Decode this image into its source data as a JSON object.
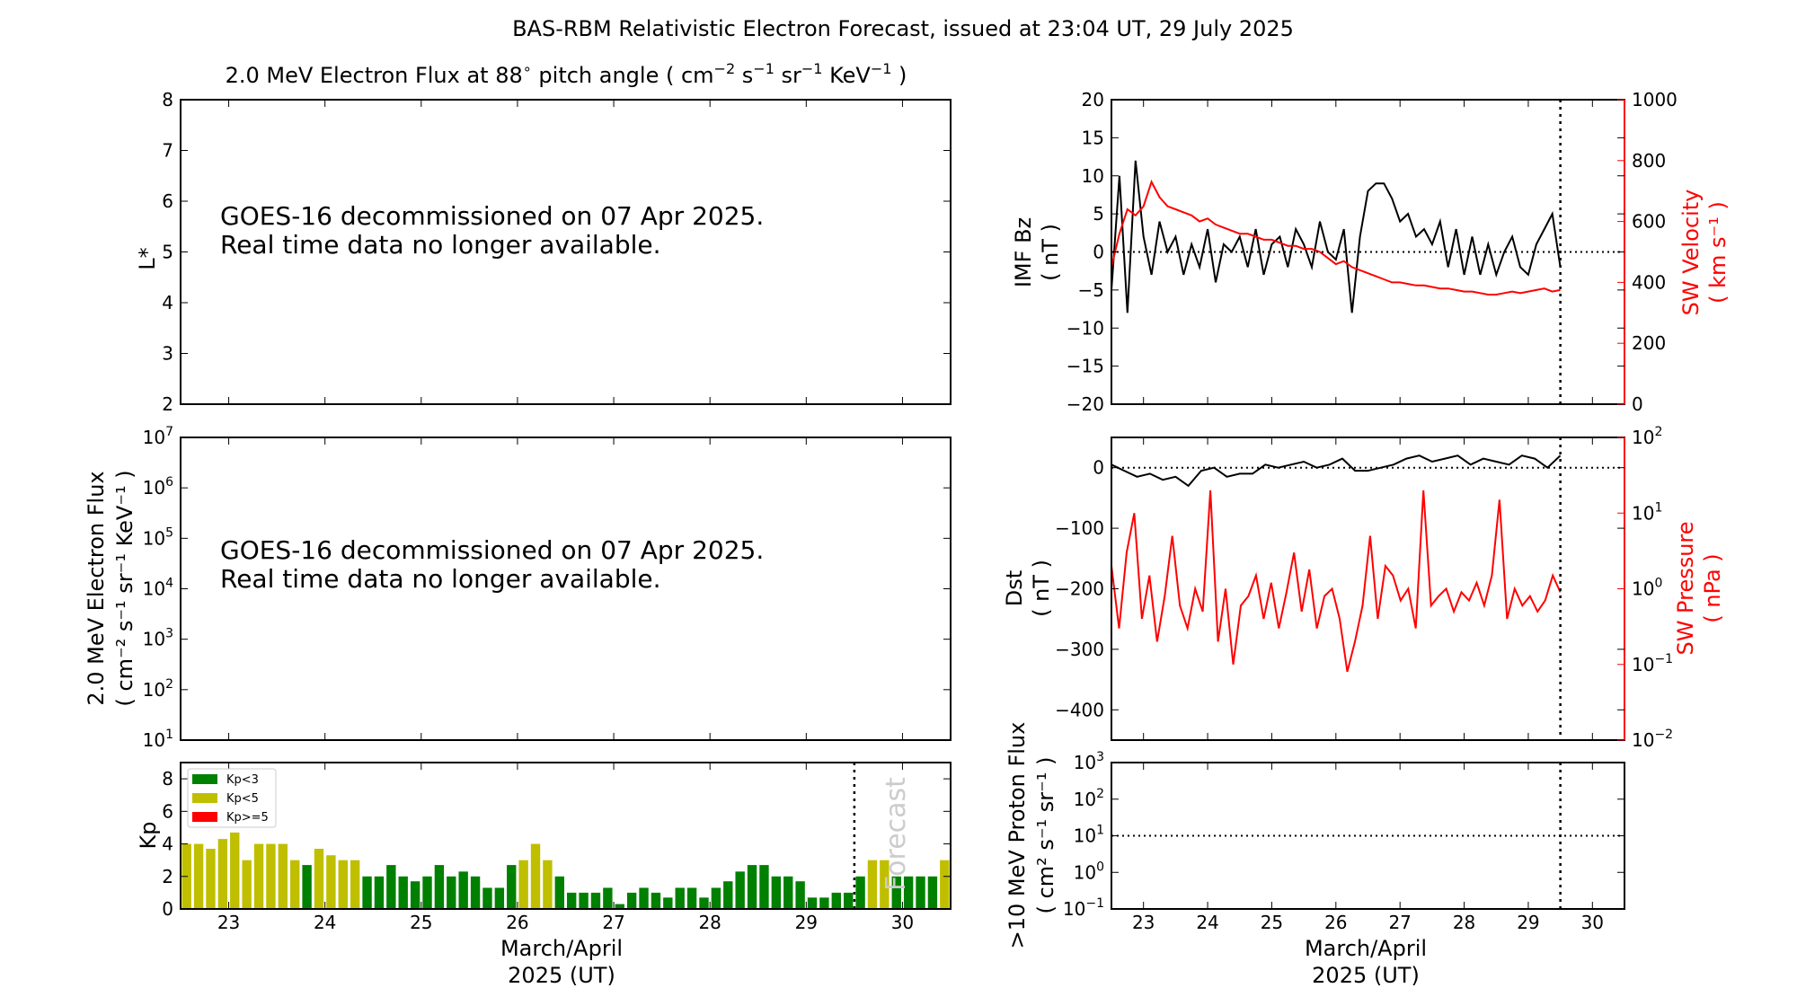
{
  "title": "BAS-RBM Relativistic Electron Forecast, issued at 23:04 UT, 29 July 2025",
  "subtitle": {
    "main": "2.0 MeV Electron Flux at 88",
    "deg": "∘",
    "rest": " pitch angle ( cm",
    "e1": "−2",
    "s": " s",
    "e2": "−1",
    "sr": " sr",
    "e3": "−1",
    "kev": " KeV",
    "e4": "−1",
    "close": " )"
  },
  "colors": {
    "kp_low": "#008000",
    "kp_mid": "#bfbf00",
    "kp_high": "#ff0000",
    "bz": "#000000",
    "sw": "#ff0000",
    "forecast_text": "#cccccc"
  },
  "messages": {
    "line1": "GOES-16 decommissioned on 07 Apr 2025.",
    "line2": "Real time data no longer available."
  },
  "xaxis": {
    "label1": "March/April",
    "label2": "2025 (UT)",
    "ticks": [
      "23",
      "24",
      "25",
      "26",
      "27",
      "28",
      "29",
      "30"
    ],
    "range": [
      22.5,
      30.5
    ]
  },
  "forecast_label": "Forecast",
  "forecast_start": 29.5,
  "chart_data": [
    {
      "type": "line",
      "name": "lstar",
      "ylabel": "L*",
      "ylim": [
        2,
        8
      ],
      "yticks": [
        "2",
        "3",
        "4",
        "5",
        "6",
        "7",
        "8"
      ],
      "series": []
    },
    {
      "type": "line",
      "name": "electron-flux",
      "ylabel1": "2.0 MeV Electron Flux",
      "ylabel2": "( cm⁻² s⁻¹ sr⁻¹ KeV⁻¹ )",
      "yscale": "log",
      "ylim_exp": [
        1,
        7
      ],
      "yticks_exp": [
        "1",
        "2",
        "3",
        "4",
        "5",
        "6",
        "7"
      ],
      "series": []
    },
    {
      "type": "bar",
      "name": "kp",
      "ylabel": "Kp",
      "ylim": [
        0,
        9
      ],
      "yticks": [
        "0",
        "2",
        "4",
        "6",
        "8"
      ],
      "legend": [
        "Kp<3",
        "Kp<5",
        "Kp>=5"
      ],
      "legend_position": "top-left",
      "bar_hours": 3,
      "start": 22.5,
      "values": [
        4,
        4,
        3.7,
        4.3,
        4.7,
        3,
        4,
        4,
        4,
        3,
        2.7,
        3.7,
        3.3,
        3,
        3,
        2,
        2,
        2.7,
        2,
        1.7,
        2,
        2.7,
        2,
        2.3,
        2,
        1.3,
        1.3,
        2.7,
        3,
        4,
        3,
        2,
        1,
        1,
        1,
        1.3,
        0.3,
        1,
        1.3,
        1,
        0.7,
        1.3,
        1.3,
        0.7,
        1.3,
        1.7,
        2.3,
        2.7,
        2.7,
        2,
        2,
        1.7,
        0.7,
        0.7,
        1,
        1,
        2,
        3,
        3,
        2,
        2,
        2,
        2,
        3
      ]
    },
    {
      "type": "line",
      "name": "imf-bz-sw-velocity",
      "ylabel1": "IMF Bz",
      "ylabel2": "( nT )",
      "ylim": [
        -20,
        20
      ],
      "yticks": [
        "−20",
        "−15",
        "−10",
        "−5",
        "0",
        "5",
        "10",
        "15",
        "20"
      ],
      "y2label1": "SW Velocity",
      "y2label2": "( km s⁻¹ )",
      "y2lim": [
        0,
        1000
      ],
      "y2ticks": [
        "0",
        "200",
        "400",
        "600",
        "800",
        "1000"
      ],
      "x_range": [
        22.5,
        29.5
      ],
      "series": [
        {
          "name": "IMF Bz (nT)",
          "values": [
            -5,
            10,
            -8,
            12,
            2,
            -3,
            4,
            0,
            2,
            -3,
            1,
            -2,
            3,
            -4,
            1,
            0,
            2,
            -2,
            3,
            -3,
            1,
            2,
            -2,
            3,
            1,
            -2,
            4,
            0,
            -1,
            3,
            -8,
            2,
            8,
            9,
            9,
            7,
            4,
            5,
            2,
            3,
            1,
            4,
            -2,
            3,
            -3,
            2,
            -3,
            1,
            -3,
            0,
            2,
            -2,
            -3,
            1,
            3,
            5,
            -2
          ]
        },
        {
          "name": "SW Velocity (km/s)",
          "values": [
            450,
            560,
            640,
            620,
            650,
            730,
            680,
            650,
            640,
            630,
            620,
            600,
            610,
            590,
            580,
            570,
            560,
            560,
            550,
            540,
            540,
            530,
            520,
            520,
            510,
            510,
            500,
            480,
            460,
            470,
            450,
            440,
            430,
            420,
            410,
            400,
            400,
            395,
            390,
            390,
            385,
            380,
            380,
            375,
            370,
            370,
            365,
            360,
            360,
            365,
            370,
            365,
            370,
            375,
            380,
            370,
            375
          ]
        }
      ]
    },
    {
      "type": "line",
      "name": "dst-sw-pressure",
      "ylabel1": "Dst",
      "ylabel2": "( nT )",
      "ylim": [
        -450,
        50
      ],
      "yticks": [
        "−400",
        "−300",
        "−200",
        "−100",
        "0"
      ],
      "y2label1": "SW Pressure",
      "y2label2": "( nPa )",
      "y2scale": "log",
      "y2lim_exp": [
        -2,
        2
      ],
      "y2ticks_exp": [
        "−2",
        "−1",
        "0",
        "1",
        "2"
      ],
      "x_range": [
        22.5,
        29.5
      ],
      "series": [
        {
          "name": "Dst (nT)",
          "values": [
            5,
            -5,
            -15,
            -10,
            -20,
            -15,
            -30,
            -5,
            0,
            -15,
            -10,
            -10,
            5,
            0,
            5,
            10,
            0,
            5,
            15,
            -5,
            -5,
            0,
            5,
            15,
            20,
            10,
            15,
            20,
            5,
            15,
            10,
            5,
            20,
            15,
            0,
            20
          ]
        },
        {
          "name": "SW Pressure (nPa)",
          "values": [
            2,
            0.3,
            3,
            10,
            0.4,
            1.5,
            0.2,
            0.8,
            5,
            0.6,
            0.3,
            1,
            0.5,
            20,
            0.2,
            1,
            0.1,
            0.6,
            0.8,
            1.5,
            0.4,
            1.2,
            0.3,
            0.9,
            3,
            0.5,
            1.8,
            0.3,
            0.8,
            1,
            0.4,
            0.08,
            0.2,
            0.6,
            5,
            0.4,
            2,
            1.5,
            0.7,
            1,
            0.3,
            20,
            0.6,
            0.8,
            1,
            0.5,
            0.9,
            0.7,
            1.2,
            0.6,
            1.5,
            15,
            0.4,
            1,
            0.6,
            0.8,
            0.5,
            0.7,
            1.5,
            0.9
          ]
        }
      ]
    },
    {
      "type": "line",
      "name": "proton-flux",
      "ylabel1": ">10 MeV Proton Flux",
      "ylabel2": "( cm² s⁻¹ sr⁻¹ )",
      "yscale": "log",
      "ylim_exp": [
        -1,
        3
      ],
      "yticks_exp": [
        "−1",
        "0",
        "1",
        "2",
        "3"
      ],
      "threshold": 10,
      "series": []
    }
  ]
}
